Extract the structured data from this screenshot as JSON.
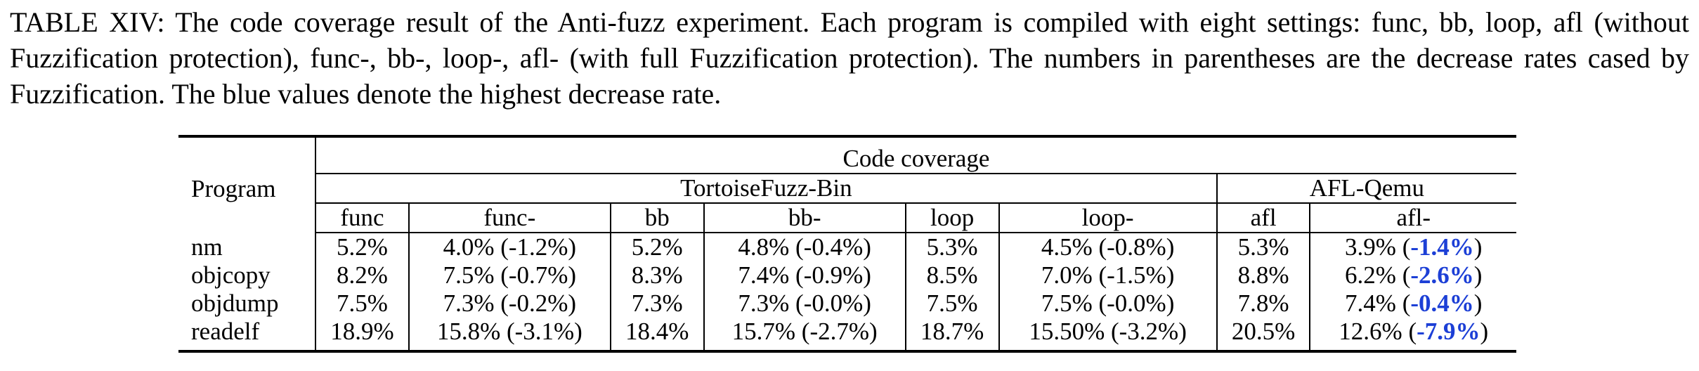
{
  "caption": "TABLE XIV: The code coverage result of the Anti-fuzz experiment. Each program is compiled with eight settings: func, bb, loop, afl (without Fuzzification protection), func-, bb-, loop-, afl- (with full Fuzzification protection). The numbers in parentheses are the decrease rates cased by Fuzzification. The blue values denote the highest decrease rate.",
  "header": {
    "program": "Program",
    "code_coverage": "Code coverage",
    "group_tortoise": "TortoiseFuzz-Bin",
    "group_afl": "AFL-Qemu",
    "cols": [
      "func",
      "func-",
      "bb",
      "bb-",
      "loop",
      "loop-",
      "afl",
      "afl-"
    ]
  },
  "rows": [
    {
      "program": "nm",
      "func": "5.2%",
      "func_minus": "4.0% (-1.2%)",
      "bb": "5.2%",
      "bb_minus": "4.8% (-0.4%)",
      "loop": "5.3%",
      "loop_minus": "4.5% (-0.8%)",
      "afl": "5.3%",
      "afl_pre": "3.9% (",
      "afl_hl": "-1.4%",
      "afl_post": ")"
    },
    {
      "program": "objcopy",
      "func": "8.2%",
      "func_minus": "7.5% (-0.7%)",
      "bb": "8.3%",
      "bb_minus": "7.4% (-0.9%)",
      "loop": "8.5%",
      "loop_minus": "7.0% (-1.5%)",
      "afl": "8.8%",
      "afl_pre": "6.2% (",
      "afl_hl": "-2.6%",
      "afl_post": ")"
    },
    {
      "program": "objdump",
      "func": "7.5%",
      "func_minus": "7.3% (-0.2%)",
      "bb": "7.3%",
      "bb_minus": "7.3% (-0.0%)",
      "loop": "7.5%",
      "loop_minus": "7.5% (-0.0%)",
      "afl": "7.8%",
      "afl_pre": "7.4% (",
      "afl_hl": "-0.4%",
      "afl_post": ")"
    },
    {
      "program": "readelf",
      "func": "18.9%",
      "func_minus": "15.8% (-3.1%)",
      "bb": "18.4%",
      "bb_minus": "15.7% (-2.7%)",
      "loop": "18.7%",
      "loop_minus": "15.50% (-3.2%)",
      "afl": "20.5%",
      "afl_pre": "12.6% (",
      "afl_hl": "-7.9%",
      "afl_post": ")"
    }
  ],
  "colors": {
    "highlight": "#1c3fd6"
  }
}
